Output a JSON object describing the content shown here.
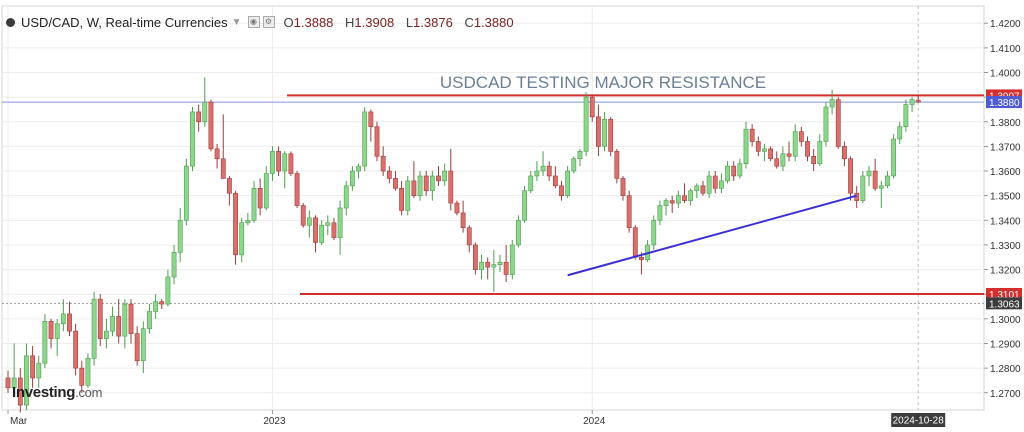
{
  "header": {
    "title": "USD/CAD, W, Real-time Currencies",
    "o_label": "O",
    "o": "1.3888",
    "h_label": "H",
    "h": "1.3908",
    "l_label": "L",
    "l": "1.3876",
    "c_label": "C",
    "c": "1.3880"
  },
  "logo": {
    "name": "Investing",
    "domain": ".com"
  },
  "colors": {
    "up": "#8dd68d",
    "down": "#d9706d",
    "resistance": "#d32f2f",
    "trendline": "#3b2fd6",
    "last": "#4f5bd5",
    "title": "#6b7f96"
  },
  "chart_data": {
    "type": "candlestick",
    "title": "USDCAD TESTING MAJOR RESISTANCE",
    "symbol": "USD/CAD",
    "timeframe": "W",
    "ylim": [
      1.263,
      1.427
    ],
    "y_ticks": [
      "1.2700",
      "1.2800",
      "1.2900",
      "1.3000",
      "1.3100",
      "1.3200",
      "1.3300",
      "1.3400",
      "1.3500",
      "1.3600",
      "1.3700",
      "1.3800",
      "1.3900",
      "1.4000",
      "1.4100",
      "1.4200"
    ],
    "x_ticks": [
      {
        "week": 0,
        "label": "Mar"
      },
      {
        "week": 43,
        "label": "2023"
      },
      {
        "week": 95,
        "label": "2024"
      }
    ],
    "current_date_label": "2024-10-28",
    "levels": [
      {
        "name": "resistance",
        "value": 1.3907,
        "label": "1.3907",
        "style": "red"
      },
      {
        "name": "support",
        "value": 1.3101,
        "label": "1.3101",
        "style": "red"
      },
      {
        "name": "last-price",
        "value": 1.388,
        "label": "1.3880",
        "style": "blue"
      },
      {
        "name": "prior-low",
        "value": 1.3063,
        "label": "1.3063",
        "style": "dark"
      }
    ],
    "trendline": {
      "from": {
        "week": 91,
        "value": 1.3177
      },
      "to": {
        "week": 138,
        "value": 1.35
      }
    },
    "candles": [
      [
        1.276,
        1.279,
        1.27,
        1.272
      ],
      [
        1.272,
        1.29,
        1.269,
        1.276
      ],
      [
        1.276,
        1.28,
        1.262,
        1.265
      ],
      [
        1.265,
        1.29,
        1.263,
        1.285
      ],
      [
        1.285,
        1.289,
        1.272,
        1.276
      ],
      [
        1.276,
        1.285,
        1.272,
        1.282
      ],
      [
        1.282,
        1.302,
        1.28,
        1.299
      ],
      [
        1.299,
        1.3,
        1.288,
        1.292
      ],
      [
        1.292,
        1.3,
        1.285,
        1.298
      ],
      [
        1.298,
        1.308,
        1.295,
        1.302
      ],
      [
        1.302,
        1.307,
        1.293,
        1.295
      ],
      [
        1.295,
        1.298,
        1.277,
        1.28
      ],
      [
        1.28,
        1.283,
        1.27,
        1.273
      ],
      [
        1.273,
        1.286,
        1.272,
        1.284
      ],
      [
        1.284,
        1.311,
        1.281,
        1.308
      ],
      [
        1.308,
        1.31,
        1.289,
        1.292
      ],
      [
        1.292,
        1.3,
        1.288,
        1.295
      ],
      [
        1.295,
        1.305,
        1.293,
        1.301
      ],
      [
        1.301,
        1.308,
        1.29,
        1.293
      ],
      [
        1.293,
        1.308,
        1.288,
        1.306
      ],
      [
        1.306,
        1.308,
        1.29,
        1.294
      ],
      [
        1.294,
        1.297,
        1.281,
        1.283
      ],
      [
        1.283,
        1.299,
        1.278,
        1.296
      ],
      [
        1.296,
        1.306,
        1.294,
        1.303
      ],
      [
        1.303,
        1.31,
        1.3,
        1.307
      ],
      [
        1.307,
        1.308,
        1.304,
        1.306
      ],
      [
        1.306,
        1.32,
        1.305,
        1.317
      ],
      [
        1.317,
        1.33,
        1.314,
        1.327
      ],
      [
        1.327,
        1.345,
        1.323,
        1.34
      ],
      [
        1.34,
        1.365,
        1.338,
        1.362
      ],
      [
        1.362,
        1.386,
        1.36,
        1.384
      ],
      [
        1.384,
        1.387,
        1.376,
        1.38
      ],
      [
        1.38,
        1.398,
        1.378,
        1.388
      ],
      [
        1.388,
        1.389,
        1.368,
        1.369
      ],
      [
        1.369,
        1.371,
        1.361,
        1.365
      ],
      [
        1.365,
        1.383,
        1.357,
        1.357
      ],
      [
        1.357,
        1.358,
        1.346,
        1.351
      ],
      [
        1.351,
        1.352,
        1.322,
        1.326
      ],
      [
        1.326,
        1.341,
        1.323,
        1.339
      ],
      [
        1.339,
        1.343,
        1.338,
        1.34
      ],
      [
        1.34,
        1.356,
        1.339,
        1.353
      ],
      [
        1.353,
        1.357,
        1.342,
        1.345
      ],
      [
        1.345,
        1.362,
        1.344,
        1.359
      ],
      [
        1.359,
        1.37,
        1.356,
        1.368
      ],
      [
        1.368,
        1.37,
        1.358,
        1.36
      ],
      [
        1.36,
        1.368,
        1.353,
        1.367
      ],
      [
        1.367,
        1.368,
        1.358,
        1.359
      ],
      [
        1.359,
        1.36,
        1.345,
        1.346
      ],
      [
        1.346,
        1.347,
        1.337,
        1.338
      ],
      [
        1.338,
        1.344,
        1.333,
        1.341
      ],
      [
        1.341,
        1.342,
        1.327,
        1.331
      ],
      [
        1.331,
        1.34,
        1.33,
        1.338
      ],
      [
        1.338,
        1.342,
        1.334,
        1.339
      ],
      [
        1.339,
        1.341,
        1.332,
        1.333
      ],
      [
        1.333,
        1.348,
        1.326,
        1.345
      ],
      [
        1.345,
        1.356,
        1.342,
        1.354
      ],
      [
        1.354,
        1.362,
        1.352,
        1.36
      ],
      [
        1.36,
        1.363,
        1.357,
        1.362
      ],
      [
        1.362,
        1.386,
        1.36,
        1.384
      ],
      [
        1.384,
        1.385,
        1.372,
        1.378
      ],
      [
        1.378,
        1.38,
        1.364,
        1.366
      ],
      [
        1.366,
        1.37,
        1.358,
        1.36
      ],
      [
        1.36,
        1.362,
        1.355,
        1.357
      ],
      [
        1.357,
        1.36,
        1.352,
        1.353
      ],
      [
        1.353,
        1.356,
        1.342,
        1.344
      ],
      [
        1.344,
        1.358,
        1.342,
        1.356
      ],
      [
        1.356,
        1.364,
        1.349,
        1.35
      ],
      [
        1.35,
        1.36,
        1.348,
        1.358
      ],
      [
        1.358,
        1.36,
        1.35,
        1.352
      ],
      [
        1.352,
        1.36,
        1.348,
        1.358
      ],
      [
        1.358,
        1.362,
        1.354,
        1.356
      ],
      [
        1.356,
        1.363,
        1.354,
        1.36
      ],
      [
        1.36,
        1.369,
        1.344,
        1.347
      ],
      [
        1.347,
        1.348,
        1.342,
        1.343
      ],
      [
        1.343,
        1.348,
        1.335,
        1.337
      ],
      [
        1.337,
        1.338,
        1.327,
        1.33
      ],
      [
        1.33,
        1.331,
        1.318,
        1.32
      ],
      [
        1.32,
        1.326,
        1.316,
        1.323
      ],
      [
        1.323,
        1.325,
        1.316,
        1.321
      ],
      [
        1.321,
        1.328,
        1.311,
        1.322
      ],
      [
        1.322,
        1.326,
        1.319,
        1.323
      ],
      [
        1.323,
        1.33,
        1.315,
        1.318
      ],
      [
        1.318,
        1.332,
        1.316,
        1.33
      ],
      [
        1.33,
        1.342,
        1.329,
        1.34
      ],
      [
        1.34,
        1.354,
        1.339,
        1.352
      ],
      [
        1.352,
        1.36,
        1.351,
        1.358
      ],
      [
        1.358,
        1.364,
        1.356,
        1.36
      ],
      [
        1.36,
        1.368,
        1.358,
        1.362
      ],
      [
        1.362,
        1.364,
        1.356,
        1.358
      ],
      [
        1.358,
        1.362,
        1.353,
        1.354
      ],
      [
        1.354,
        1.356,
        1.348,
        1.35
      ],
      [
        1.35,
        1.362,
        1.349,
        1.36
      ],
      [
        1.36,
        1.366,
        1.359,
        1.365
      ],
      [
        1.365,
        1.369,
        1.362,
        1.368
      ],
      [
        1.368,
        1.392,
        1.366,
        1.39
      ],
      [
        1.39,
        1.391,
        1.38,
        1.382
      ],
      [
        1.382,
        1.387,
        1.366,
        1.37
      ],
      [
        1.37,
        1.384,
        1.368,
        1.381
      ],
      [
        1.381,
        1.382,
        1.366,
        1.368
      ],
      [
        1.368,
        1.369,
        1.355,
        1.357
      ],
      [
        1.357,
        1.358,
        1.348,
        1.35
      ],
      [
        1.35,
        1.352,
        1.335,
        1.337
      ],
      [
        1.337,
        1.338,
        1.324,
        1.325
      ],
      [
        1.325,
        1.327,
        1.318,
        1.324
      ],
      [
        1.324,
        1.332,
        1.323,
        1.33
      ],
      [
        1.33,
        1.342,
        1.328,
        1.34
      ],
      [
        1.34,
        1.348,
        1.338,
        1.346
      ],
      [
        1.346,
        1.349,
        1.342,
        1.348
      ],
      [
        1.348,
        1.35,
        1.343,
        1.347
      ],
      [
        1.347,
        1.352,
        1.345,
        1.35
      ],
      [
        1.35,
        1.355,
        1.347,
        1.348
      ],
      [
        1.348,
        1.353,
        1.346,
        1.352
      ],
      [
        1.352,
        1.355,
        1.349,
        1.354
      ],
      [
        1.354,
        1.356,
        1.35,
        1.351
      ],
      [
        1.351,
        1.36,
        1.349,
        1.358
      ],
      [
        1.358,
        1.36,
        1.351,
        1.353
      ],
      [
        1.353,
        1.359,
        1.351,
        1.356
      ],
      [
        1.356,
        1.364,
        1.355,
        1.362
      ],
      [
        1.362,
        1.364,
        1.356,
        1.358
      ],
      [
        1.358,
        1.365,
        1.357,
        1.363
      ],
      [
        1.363,
        1.38,
        1.361,
        1.377
      ],
      [
        1.377,
        1.379,
        1.37,
        1.372
      ],
      [
        1.372,
        1.374,
        1.366,
        1.368
      ],
      [
        1.368,
        1.371,
        1.364,
        1.369
      ],
      [
        1.369,
        1.37,
        1.364,
        1.365
      ],
      [
        1.365,
        1.368,
        1.361,
        1.362
      ],
      [
        1.362,
        1.37,
        1.36,
        1.367
      ],
      [
        1.367,
        1.372,
        1.364,
        1.366
      ],
      [
        1.366,
        1.379,
        1.364,
        1.376
      ],
      [
        1.376,
        1.378,
        1.37,
        1.372
      ],
      [
        1.372,
        1.374,
        1.364,
        1.366
      ],
      [
        1.366,
        1.369,
        1.36,
        1.363
      ],
      [
        1.363,
        1.375,
        1.362,
        1.372
      ],
      [
        1.372,
        1.388,
        1.37,
        1.386
      ],
      [
        1.386,
        1.393,
        1.383,
        1.389
      ],
      [
        1.389,
        1.39,
        1.369,
        1.37
      ],
      [
        1.37,
        1.372,
        1.362,
        1.365
      ],
      [
        1.365,
        1.366,
        1.348,
        1.351
      ],
      [
        1.351,
        1.354,
        1.345,
        1.348
      ],
      [
        1.348,
        1.36,
        1.347,
        1.358
      ],
      [
        1.358,
        1.362,
        1.354,
        1.36
      ],
      [
        1.36,
        1.365,
        1.352,
        1.353
      ],
      [
        1.353,
        1.356,
        1.345,
        1.354
      ],
      [
        1.354,
        1.36,
        1.353,
        1.358
      ],
      [
        1.358,
        1.375,
        1.357,
        1.373
      ],
      [
        1.373,
        1.38,
        1.371,
        1.378
      ],
      [
        1.378,
        1.389,
        1.376,
        1.387
      ],
      [
        1.387,
        1.39,
        1.384,
        1.389
      ],
      [
        1.3888,
        1.3908,
        1.3876,
        1.388
      ]
    ]
  }
}
